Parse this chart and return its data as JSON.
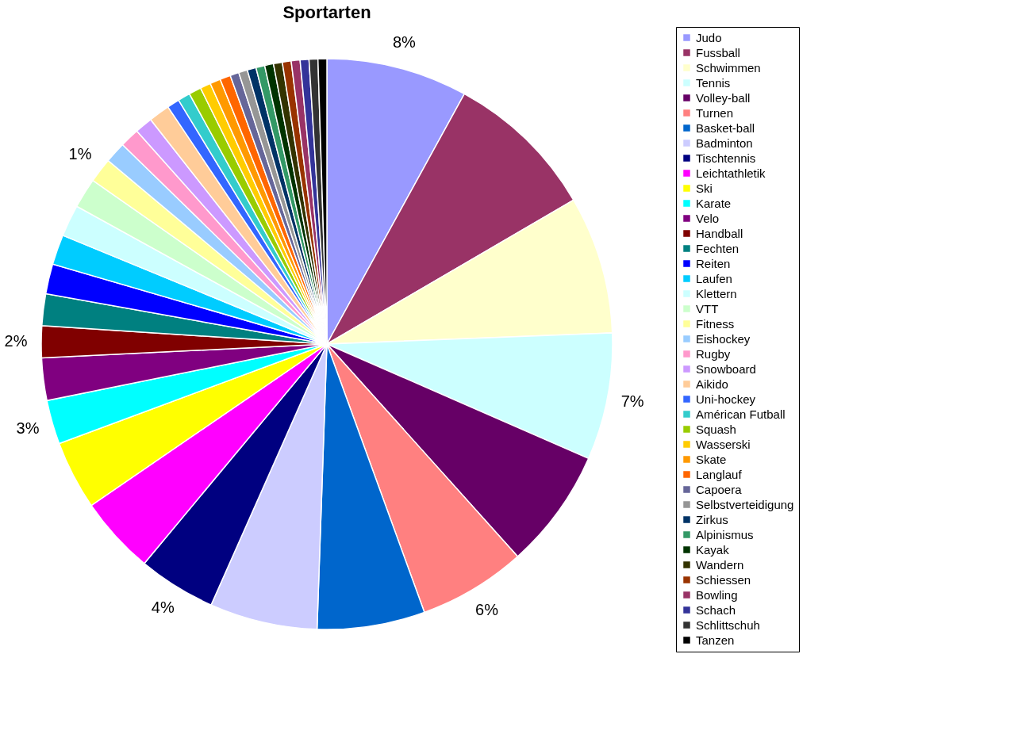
{
  "chart_data": {
    "type": "pie",
    "title": "Sportarten",
    "categories": [
      "Judo",
      "Fussball",
      "Schwimmen",
      "Tennis",
      "Volley-ball",
      "Turnen",
      "Basket-ball",
      "Badminton",
      "Tischtennis",
      "Leichtathletik",
      "Ski",
      "Karate",
      "Velo",
      "Handball",
      "Fechten",
      "Reiten",
      "Laufen",
      "Klettern",
      "VTT",
      "Fitness",
      "Eishockey",
      "Rugby",
      "Snowboard",
      "Aikido",
      "Uni-hockey",
      "Américan Futball",
      "Squash",
      "Wasserski",
      "Skate",
      "Langlauf",
      "Capoera",
      "Selbstverteidigung",
      "Zirkus",
      "Alpinismus",
      "Kayak",
      "Wandern",
      "Schiessen",
      "Bowling",
      "Schach",
      "Schlittschuh",
      "Tanzen"
    ],
    "values": [
      8.0,
      8.6,
      7.8,
      7.2,
      6.8,
      6.1,
      6.1,
      6.1,
      4.4,
      4.4,
      3.9,
      2.5,
      2.4,
      1.8,
      1.8,
      1.7,
      1.7,
      1.8,
      1.7,
      1.4,
      1.2,
      1.1,
      1.0,
      1.2,
      0.7,
      0.7,
      0.7,
      0.6,
      0.6,
      0.6,
      0.5,
      0.5,
      0.5,
      0.5,
      0.5,
      0.5,
      0.5,
      0.5,
      0.5,
      0.5,
      0.5
    ],
    "colors": [
      "#9999ff",
      "#993366",
      "#ffffcc",
      "#ccffff",
      "#660066",
      "#ff8080",
      "#0066cc",
      "#ccccff",
      "#000080",
      "#ff00ff",
      "#ffff00",
      "#00ffff",
      "#800080",
      "#800000",
      "#008080",
      "#0000ff",
      "#00ccff",
      "#ccffff",
      "#ccffcc",
      "#ffff99",
      "#99ccff",
      "#ff99cc",
      "#cc99ff",
      "#ffcc99",
      "#3366ff",
      "#33cccc",
      "#99cc00",
      "#ffcc00",
      "#ff9900",
      "#ff6600",
      "#666699",
      "#969696",
      "#003366",
      "#339966",
      "#003300",
      "#333300",
      "#993300",
      "#993366",
      "#333399",
      "#333333",
      "#000000"
    ],
    "value_labels": [
      "8%",
      null,
      null,
      "7%",
      null,
      "6%",
      null,
      null,
      "4%",
      null,
      null,
      "3%",
      null,
      "2%",
      null,
      null,
      null,
      null,
      null,
      "1%",
      null,
      null,
      null,
      null,
      null,
      null,
      null,
      null,
      null,
      null,
      null,
      null,
      null,
      null,
      null,
      null,
      null,
      null,
      null,
      null,
      null
    ],
    "legend": "right"
  }
}
